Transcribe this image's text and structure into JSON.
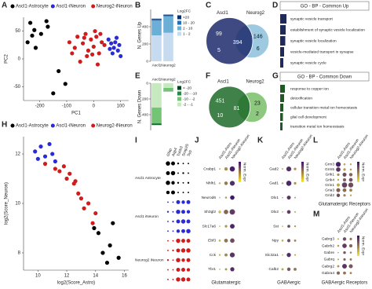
{
  "chart_data": [
    {
      "type": "scatter",
      "panel": "A",
      "xlabel": "PC1",
      "ylabel": "PC2",
      "xlim": [
        -260,
        130
      ],
      "ylim": [
        -75,
        75
      ],
      "xticks": [
        -200,
        -100,
        0,
        100
      ],
      "yticks": [
        -50,
        0,
        50
      ],
      "series": [
        {
          "name": "Ascl1-Astrocyte",
          "color": "#000000",
          "x": [
            -235,
            -220,
            -228,
            -245,
            -195,
            -170,
            -175,
            -215,
            -130,
            -105,
            -150
          ],
          "y": [
            65,
            52,
            42,
            30,
            45,
            58,
            68,
            20,
            -22,
            -45,
            -62
          ]
        },
        {
          "name": "Ascl1-iNeuron",
          "color": "#2b2bd6",
          "x": [
            55,
            65,
            75,
            80,
            90,
            95,
            100,
            70,
            85,
            60
          ],
          "y": [
            35,
            28,
            20,
            30,
            15,
            25,
            5,
            10,
            38,
            18
          ]
        },
        {
          "name": "Neurog2-iNeuron",
          "color": "#d01c1c",
          "x": [
            -90,
            -70,
            -60,
            -40,
            -30,
            -20,
            -10,
            0,
            10,
            20,
            30,
            -50,
            -25,
            5,
            15,
            -80,
            -35,
            40,
            -5,
            25
          ],
          "y": [
            30,
            20,
            40,
            28,
            45,
            15,
            35,
            22,
            40,
            10,
            30,
            -5,
            5,
            50,
            -10,
            10,
            38,
            25,
            8,
            45
          ]
        }
      ]
    },
    {
      "type": "bar",
      "panel": "B",
      "ylabel": "N. Genes Up",
      "categories": [
        "Ascl1",
        "Neurog2"
      ],
      "ylim": [
        0,
        600
      ],
      "yticks": [
        0,
        200,
        400
      ],
      "legend_title": "Log2FC",
      "series": [
        {
          "name": ">20",
          "color": "#08306b",
          "values": [
            8,
            8
          ]
        },
        {
          "name": "10 - 20",
          "color": "#2171b5",
          "values": [
            15,
            12
          ]
        },
        {
          "name": "2 - 10",
          "color": "#6baed6",
          "values": [
            170,
            190
          ]
        },
        {
          "name": "1 - 2",
          "color": "#c6dbef",
          "values": [
            300,
            330
          ]
        }
      ]
    },
    {
      "type": "venn",
      "panel": "C",
      "sets": [
        "Ascl1",
        "Neurog2"
      ],
      "colors": [
        "#1c2a6b",
        "#9ecae1"
      ],
      "values": [
        99,
        5,
        394,
        146,
        6
      ]
    },
    {
      "type": "hbar",
      "panel": "D",
      "title": "GO - BP - Common Up",
      "color": "#1f2a5a",
      "xlim": [
        0,
        10
      ],
      "categories": [
        "synaptic vesicle transport",
        "establishment of synaptic vesicle localization",
        "synaptic vesicle localization",
        "vesicle-mediated transport in synapse",
        "synaptic vesicle cycle"
      ],
      "values": [
        8,
        7,
        6.5,
        5,
        4
      ]
    },
    {
      "type": "bar",
      "panel": "E",
      "ylabel": "N. Genes Down",
      "reverse": true,
      "categories": [
        "Ascl1",
        "Neurog2"
      ],
      "ylim": [
        0,
        600
      ],
      "yticks": [
        0,
        200,
        400
      ],
      "legend_title": "Log2FC",
      "series": [
        {
          "name": "< -20",
          "color": "#00441b",
          "values": [
            7,
            2
          ]
        },
        {
          "name": "-20 - -10",
          "color": "#238b45",
          "values": [
            15,
            4
          ]
        },
        {
          "name": "-10 - -2",
          "color": "#74c476",
          "values": [
            200,
            38
          ]
        },
        {
          "name": "-2 - -1",
          "color": "#c7e9c0",
          "values": [
            310,
            60
          ]
        }
      ]
    },
    {
      "type": "venn",
      "panel": "F",
      "sets": [
        "Ascl1",
        "Neurog2"
      ],
      "colors": [
        "#1f6b2a",
        "#8cc97e"
      ],
      "values": [
        451,
        10,
        81,
        23,
        2
      ]
    },
    {
      "type": "hbar",
      "panel": "G",
      "title": "GO - BP - Common Down",
      "color": "#1e5a23",
      "xlim": [
        0,
        10
      ],
      "categories": [
        "response to copper ion",
        "detoxification",
        "cellular transition metal ion homeostasis",
        "glial cell development",
        "transition metal ion homeostasis"
      ],
      "values": [
        6,
        5,
        4,
        3.5,
        3
      ]
    },
    {
      "type": "scatter",
      "panel": "H",
      "xlabel": "log2(Score_Astro)",
      "ylabel": "log2(Score_Neuron)",
      "xlim": [
        9,
        16.3
      ],
      "ylim": [
        7.3,
        12.7
      ],
      "xticks": [
        10,
        12,
        14,
        16
      ],
      "yticks": [
        8,
        10,
        12
      ],
      "series": [
        {
          "name": "Ascl1-Astrocyte",
          "color": "#000000",
          "x": [
            14.2,
            14.5,
            15.0,
            15.6,
            14.8,
            13.9,
            15.2
          ],
          "y": [
            8.8,
            8.0,
            8.3,
            7.8,
            7.6,
            9.0,
            9.2
          ]
        },
        {
          "name": "Ascl1-iNeuron",
          "color": "#2b2bd6",
          "x": [
            9.8,
            10.2,
            10.5,
            10.8,
            11.0,
            10.0,
            11.2
          ],
          "y": [
            12.1,
            12.3,
            11.9,
            12.4,
            12.0,
            11.8,
            11.7
          ]
        },
        {
          "name": "Neurog2-iNeuron",
          "color": "#d01c1c",
          "x": [
            10.5,
            11.2,
            11.8,
            12.0,
            12.5,
            12.8,
            13.0,
            13.5,
            12.2,
            11.5,
            13.2,
            14.0,
            13.8,
            12.6
          ],
          "y": [
            11.6,
            11.4,
            11.5,
            11.0,
            10.8,
            10.4,
            10.2,
            10.0,
            11.2,
            11.3,
            9.8,
            9.6,
            9.2,
            10.9
          ]
        }
      ]
    },
    {
      "type": "dotgrid",
      "panel": "I",
      "categories": [
        "Gfap",
        "Aqp4",
        "Tubb3",
        "Snap25",
        "Syp"
      ],
      "size_lim": [
        0,
        1
      ],
      "groups": [
        {
          "name": "Ascl1 Astrocyte",
          "color": "#000000",
          "values": [
            [
              0.9,
              0.8,
              0.3,
              0.2,
              0.2
            ],
            [
              0.8,
              0.9,
              0.2,
              0.3,
              0.2
            ],
            [
              0.9,
              0.7,
              0.3,
              0.2,
              0.3
            ],
            [
              0.7,
              0.8,
              0.2,
              0.2,
              0.2
            ]
          ]
        },
        {
          "name": "Ascl1 iNeuron",
          "color": "#2b2bd6",
          "values": [
            [
              0.2,
              0.2,
              0.8,
              0.7,
              0.8
            ],
            [
              0.3,
              0.2,
              0.9,
              0.8,
              0.7
            ],
            [
              0.2,
              0.3,
              0.8,
              0.9,
              0.8
            ],
            [
              0.2,
              0.2,
              0.7,
              0.8,
              0.9
            ]
          ]
        },
        {
          "name": "Neurog2 iNeuron",
          "color": "#d01c1c",
          "values": [
            [
              0.2,
              0.2,
              0.9,
              0.8,
              0.8
            ],
            [
              0.2,
              0.3,
              0.8,
              0.9,
              0.9
            ],
            [
              0.3,
              0.2,
              0.9,
              0.7,
              0.8
            ],
            [
              0.2,
              0.2,
              0.8,
              0.8,
              0.7
            ],
            [
              0.2,
              0.2,
              0.9,
              0.9,
              0.8
            ]
          ]
        }
      ]
    },
    {
      "type": "dot",
      "panel": "J",
      "label": "Glutamatergic",
      "legend_title": "Norm. Expr",
      "clim": [
        -1,
        2
      ],
      "color_low": "#fde725",
      "color_high": "#3b0f70",
      "categories": [
        "Ascl1-Astro",
        "Ascl1-iNeuron",
        "Neurog2-iNeuron"
      ],
      "genes": [
        "Crabp1",
        "Nhlh1",
        "Neurod6",
        "Sh3gl2",
        "Slc17a6",
        "Ebf3",
        "Cck",
        "Tbr1"
      ],
      "expr": [
        [
          -0.8,
          0.2,
          1.8
        ],
        [
          -0.6,
          0.5,
          1.6
        ],
        [
          -0.7,
          -0.2,
          1.9
        ],
        [
          -0.5,
          0.8,
          1.4
        ],
        [
          -0.9,
          0.1,
          1.7
        ],
        [
          -0.4,
          0.6,
          1.2
        ],
        [
          -0.6,
          0.3,
          1.5
        ],
        [
          -0.7,
          0.0,
          1.6
        ]
      ],
      "pct": [
        [
          10,
          45,
          85
        ],
        [
          15,
          50,
          80
        ],
        [
          5,
          20,
          70
        ],
        [
          30,
          70,
          90
        ],
        [
          5,
          30,
          75
        ],
        [
          20,
          55,
          70
        ],
        [
          15,
          40,
          80
        ],
        [
          5,
          25,
          65
        ]
      ]
    },
    {
      "type": "dot",
      "panel": "K",
      "label": "GABAergic",
      "legend_title": "Norm. Expr",
      "clim": [
        -1,
        2
      ],
      "color_low": "#fde725",
      "color_high": "#3b0f70",
      "categories": [
        "Ascl1-Astro",
        "Ascl1-iNeuron",
        "Neurog2-iNeuron"
      ],
      "genes": [
        "Gad2",
        "Gad1",
        "Dlx1",
        "Dlx2",
        "Sst",
        "Npy",
        "Slc32a1",
        "Calb2"
      ],
      "expr": [
        [
          -0.6,
          1.6,
          0.2
        ],
        [
          -0.5,
          1.7,
          0.1
        ],
        [
          -0.7,
          1.5,
          -0.2
        ],
        [
          -0.6,
          1.4,
          -0.3
        ],
        [
          -0.8,
          1.2,
          0.0
        ],
        [
          -0.4,
          1.1,
          0.3
        ],
        [
          -0.7,
          1.6,
          -0.1
        ],
        [
          -0.3,
          1.0,
          0.6
        ]
      ],
      "pct": [
        [
          10,
          80,
          30
        ],
        [
          15,
          85,
          30
        ],
        [
          5,
          60,
          10
        ],
        [
          5,
          55,
          10
        ],
        [
          5,
          40,
          15
        ],
        [
          20,
          45,
          25
        ],
        [
          5,
          65,
          10
        ],
        [
          25,
          50,
          40
        ]
      ]
    },
    {
      "type": "dot",
      "panel": "L",
      "label": "Glutamatergic Receptors",
      "legend_title": "Norm. Expr",
      "clim": [
        -1,
        2
      ],
      "color_low": "#fde725",
      "color_high": "#3b0f70",
      "categories": [
        "Ascl1-Astro",
        "Ascl1-iNeuron",
        "Neurog2-iNeuron"
      ],
      "genes": [
        "Grm3",
        "Grm5",
        "Grik1",
        "Grik4",
        "Grin1",
        "Gria3",
        "Grid2"
      ],
      "expr": [
        [
          1.8,
          -0.3,
          -0.4
        ],
        [
          1.5,
          0.0,
          -0.2
        ],
        [
          0.2,
          1.2,
          0.8
        ],
        [
          -0.3,
          0.9,
          1.1
        ],
        [
          -0.2,
          1.3,
          1.2
        ],
        [
          0.9,
          0.7,
          0.4
        ],
        [
          1.2,
          0.3,
          -0.2
        ]
      ],
      "pct": [
        [
          80,
          20,
          15
        ],
        [
          70,
          30,
          20
        ],
        [
          30,
          60,
          50
        ],
        [
          15,
          45,
          55
        ],
        [
          40,
          85,
          80
        ],
        [
          60,
          55,
          40
        ],
        [
          50,
          30,
          15
        ]
      ]
    },
    {
      "type": "dot",
      "panel": "M",
      "label": "GABAergic Receptors",
      "legend_title": "Norm. Expr",
      "clim": [
        -1,
        2
      ],
      "color_low": "#fde725",
      "color_high": "#3b0f70",
      "categories": [
        "Ascl1-Astro",
        "Ascl1-iNeuron",
        "Neurog2-iNeuron"
      ],
      "genes": [
        "Gabrg3",
        "Gabrb2",
        "Gabre",
        "Gabrq",
        "Gabrg2",
        "Gabra4"
      ],
      "expr": [
        [
          -0.4,
          1.2,
          0.6
        ],
        [
          -0.2,
          1.4,
          0.8
        ],
        [
          -0.5,
          1.0,
          0.3
        ],
        [
          -0.3,
          0.9,
          0.5
        ],
        [
          0.0,
          1.5,
          1.0
        ],
        [
          0.8,
          0.6,
          0.2
        ]
      ],
      "pct": [
        [
          10,
          50,
          30
        ],
        [
          20,
          70,
          45
        ],
        [
          5,
          35,
          20
        ],
        [
          10,
          30,
          25
        ],
        [
          25,
          75,
          60
        ],
        [
          45,
          40,
          25
        ]
      ]
    }
  ]
}
